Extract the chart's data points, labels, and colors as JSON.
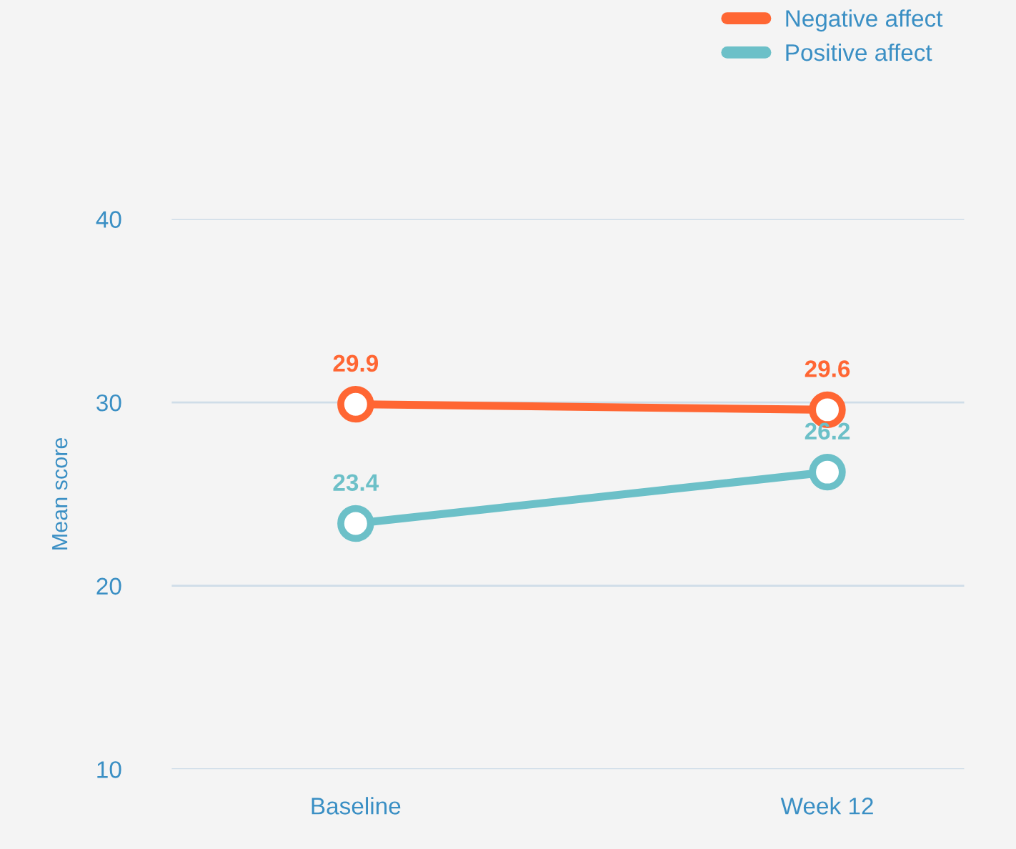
{
  "chart_data": {
    "type": "line",
    "ylabel": "Mean score",
    "categories": [
      "Baseline",
      "Week 12"
    ],
    "series": [
      {
        "name": "Negative affect",
        "color": "#ff6633",
        "values": [
          29.9,
          29.6
        ]
      },
      {
        "name": "Positive affect",
        "color": "#6cc0c8",
        "values": [
          23.4,
          26.2
        ]
      }
    ],
    "ylim": [
      10,
      40
    ],
    "yticks": [
      10,
      20,
      30,
      40
    ],
    "grid": "y",
    "legend": "top right",
    "marker": "circle",
    "line_style": "solid",
    "data_labels": true
  }
}
